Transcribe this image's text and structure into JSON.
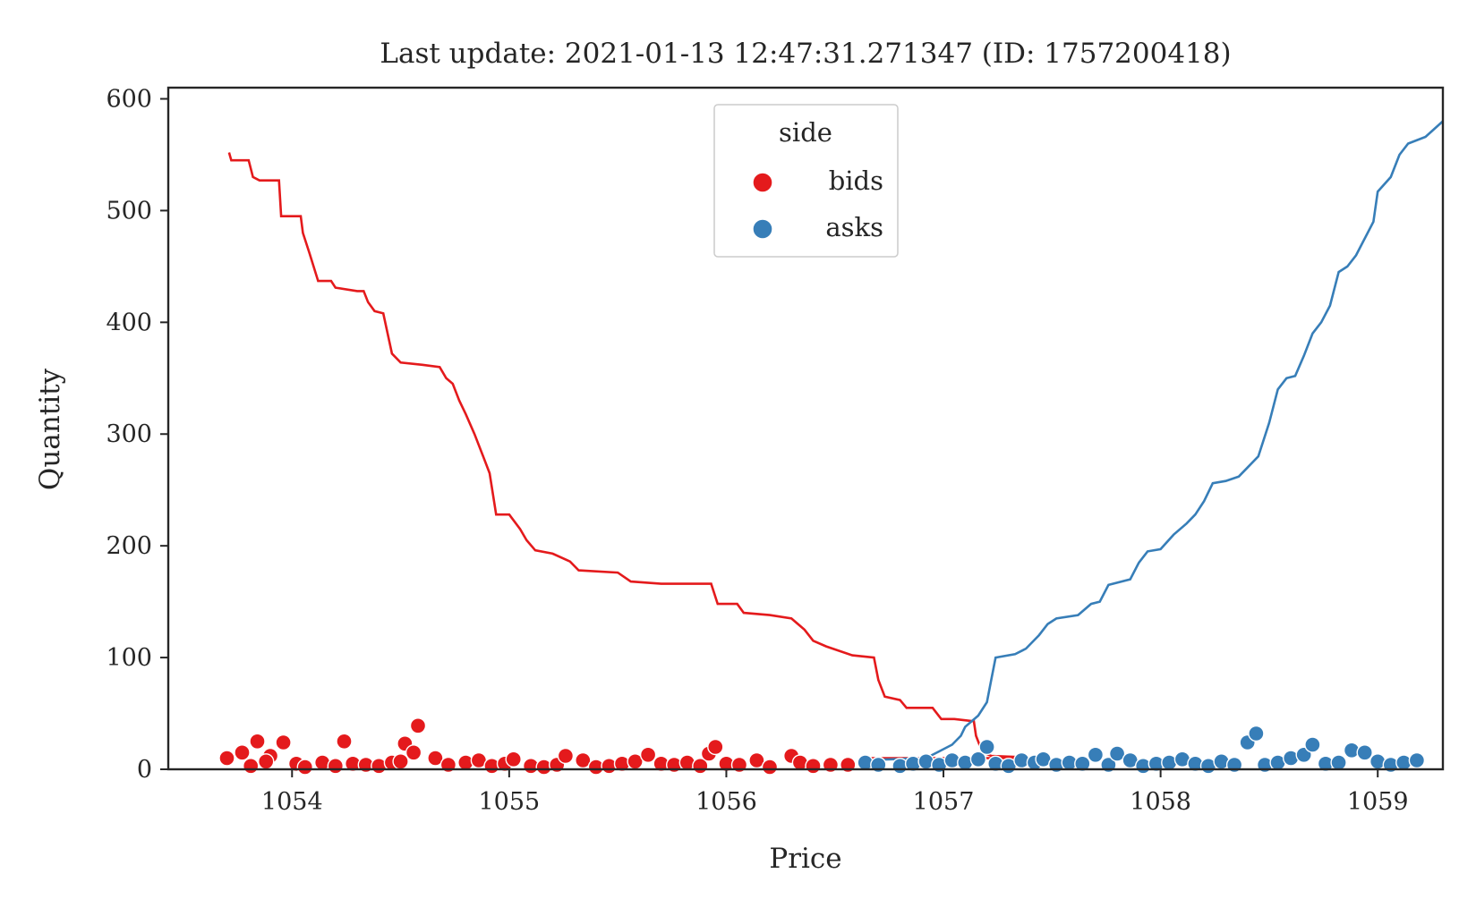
{
  "chart_data": {
    "type": "scatter",
    "title": "Last update: 2021-01-13 12:47:31.271347 (ID: 1757200418)",
    "xlabel": "Price",
    "ylabel": "Quantity",
    "xlim": [
      1053.43,
      1059.3
    ],
    "ylim": [
      0,
      610
    ],
    "x_ticks": [
      1054,
      1055,
      1056,
      1057,
      1058,
      1059
    ],
    "y_ticks": [
      0,
      100,
      200,
      300,
      400,
      500,
      600
    ],
    "grid": false,
    "legend": {
      "title": "side",
      "placement": "top-center"
    },
    "series": [
      {
        "name": "bids",
        "color": "#e41a1c",
        "cumulative_line": [
          [
            1053.71,
            552
          ],
          [
            1053.72,
            545
          ],
          [
            1053.8,
            545
          ],
          [
            1053.82,
            530
          ],
          [
            1053.85,
            527
          ],
          [
            1053.94,
            527
          ],
          [
            1053.95,
            495
          ],
          [
            1054.0,
            495
          ],
          [
            1054.04,
            495
          ],
          [
            1054.05,
            480
          ],
          [
            1054.08,
            462
          ],
          [
            1054.12,
            437
          ],
          [
            1054.18,
            437
          ],
          [
            1054.2,
            431
          ],
          [
            1054.3,
            428
          ],
          [
            1054.33,
            428
          ],
          [
            1054.35,
            418
          ],
          [
            1054.38,
            410
          ],
          [
            1054.42,
            408
          ],
          [
            1054.46,
            372
          ],
          [
            1054.5,
            364
          ],
          [
            1054.6,
            362
          ],
          [
            1054.68,
            360
          ],
          [
            1054.71,
            350
          ],
          [
            1054.74,
            345
          ],
          [
            1054.77,
            330
          ],
          [
            1054.8,
            318
          ],
          [
            1054.84,
            300
          ],
          [
            1054.88,
            280
          ],
          [
            1054.91,
            265
          ],
          [
            1054.94,
            228
          ],
          [
            1055.0,
            228
          ],
          [
            1055.05,
            215
          ],
          [
            1055.08,
            205
          ],
          [
            1055.12,
            196
          ],
          [
            1055.2,
            193
          ],
          [
            1055.28,
            186
          ],
          [
            1055.32,
            178
          ],
          [
            1055.5,
            176
          ],
          [
            1055.56,
            168
          ],
          [
            1055.7,
            166
          ],
          [
            1055.93,
            166
          ],
          [
            1055.96,
            148
          ],
          [
            1056.05,
            148
          ],
          [
            1056.08,
            140
          ],
          [
            1056.2,
            138
          ],
          [
            1056.3,
            135
          ],
          [
            1056.36,
            125
          ],
          [
            1056.4,
            115
          ],
          [
            1056.46,
            110
          ],
          [
            1056.58,
            102
          ],
          [
            1056.68,
            100
          ],
          [
            1056.7,
            80
          ],
          [
            1056.73,
            65
          ],
          [
            1056.8,
            62
          ],
          [
            1056.83,
            55
          ],
          [
            1056.95,
            55
          ],
          [
            1056.99,
            45
          ],
          [
            1057.05,
            45
          ],
          [
            1057.14,
            43
          ],
          [
            1057.15,
            30
          ],
          [
            1057.18,
            15
          ],
          [
            1057.22,
            12
          ],
          [
            1057.35,
            11
          ],
          [
            1057.42,
            10
          ],
          [
            1056.62,
            10
          ]
        ],
        "points": [
          [
            1053.7,
            10
          ],
          [
            1053.77,
            15
          ],
          [
            1053.84,
            25
          ],
          [
            1053.9,
            12
          ],
          [
            1053.96,
            24
          ],
          [
            1053.81,
            3
          ],
          [
            1053.88,
            7
          ],
          [
            1054.02,
            5
          ],
          [
            1054.06,
            2
          ],
          [
            1054.14,
            6
          ],
          [
            1054.2,
            3
          ],
          [
            1054.24,
            25
          ],
          [
            1054.28,
            5
          ],
          [
            1054.34,
            4
          ],
          [
            1054.4,
            3
          ],
          [
            1054.46,
            6
          ],
          [
            1054.52,
            23
          ],
          [
            1054.56,
            15
          ],
          [
            1054.58,
            39
          ],
          [
            1054.5,
            7
          ],
          [
            1054.66,
            10
          ],
          [
            1054.72,
            4
          ],
          [
            1054.8,
            6
          ],
          [
            1054.86,
            8
          ],
          [
            1054.92,
            3
          ],
          [
            1054.98,
            5
          ],
          [
            1055.02,
            9
          ],
          [
            1055.1,
            3
          ],
          [
            1055.16,
            2
          ],
          [
            1055.22,
            4
          ],
          [
            1055.26,
            12
          ],
          [
            1055.34,
            8
          ],
          [
            1055.4,
            2
          ],
          [
            1055.46,
            3
          ],
          [
            1055.52,
            5
          ],
          [
            1055.58,
            7
          ],
          [
            1055.64,
            13
          ],
          [
            1055.7,
            5
          ],
          [
            1055.76,
            4
          ],
          [
            1055.82,
            6
          ],
          [
            1055.88,
            3
          ],
          [
            1055.92,
            14
          ],
          [
            1055.95,
            20
          ],
          [
            1056.0,
            5
          ],
          [
            1056.06,
            4
          ],
          [
            1056.14,
            8
          ],
          [
            1056.2,
            2
          ],
          [
            1056.3,
            12
          ],
          [
            1056.34,
            6
          ],
          [
            1056.4,
            3
          ],
          [
            1056.48,
            4
          ],
          [
            1056.56,
            4
          ]
        ]
      },
      {
        "name": "asks",
        "color": "#377eb8",
        "cumulative_line": [
          [
            1056.62,
            8
          ],
          [
            1056.92,
            10
          ],
          [
            1056.98,
            16
          ],
          [
            1057.04,
            22
          ],
          [
            1057.08,
            30
          ],
          [
            1057.1,
            38
          ],
          [
            1057.16,
            48
          ],
          [
            1057.2,
            60
          ],
          [
            1057.22,
            80
          ],
          [
            1057.24,
            100
          ],
          [
            1057.33,
            103
          ],
          [
            1057.38,
            108
          ],
          [
            1057.44,
            120
          ],
          [
            1057.48,
            130
          ],
          [
            1057.52,
            135
          ],
          [
            1057.62,
            138
          ],
          [
            1057.68,
            148
          ],
          [
            1057.72,
            150
          ],
          [
            1057.76,
            165
          ],
          [
            1057.86,
            170
          ],
          [
            1057.9,
            185
          ],
          [
            1057.94,
            195
          ],
          [
            1058.0,
            197
          ],
          [
            1058.06,
            210
          ],
          [
            1058.12,
            220
          ],
          [
            1058.16,
            228
          ],
          [
            1058.2,
            240
          ],
          [
            1058.24,
            256
          ],
          [
            1058.3,
            258
          ],
          [
            1058.36,
            262
          ],
          [
            1058.4,
            270
          ],
          [
            1058.45,
            280
          ],
          [
            1058.5,
            310
          ],
          [
            1058.54,
            340
          ],
          [
            1058.58,
            350
          ],
          [
            1058.62,
            352
          ],
          [
            1058.66,
            370
          ],
          [
            1058.7,
            390
          ],
          [
            1058.74,
            400
          ],
          [
            1058.78,
            415
          ],
          [
            1058.82,
            445
          ],
          [
            1058.86,
            450
          ],
          [
            1058.9,
            460
          ],
          [
            1058.94,
            475
          ],
          [
            1058.98,
            490
          ],
          [
            1059.0,
            517
          ],
          [
            1059.06,
            530
          ],
          [
            1059.1,
            550
          ],
          [
            1059.14,
            560
          ],
          [
            1059.22,
            566
          ],
          [
            1059.3,
            580
          ]
        ],
        "points": [
          [
            1056.64,
            6
          ],
          [
            1056.7,
            4
          ],
          [
            1056.8,
            3
          ],
          [
            1056.86,
            5
          ],
          [
            1056.92,
            7
          ],
          [
            1056.98,
            4
          ],
          [
            1057.04,
            8
          ],
          [
            1057.1,
            6
          ],
          [
            1057.16,
            9
          ],
          [
            1057.2,
            20
          ],
          [
            1057.24,
            5
          ],
          [
            1057.3,
            3
          ],
          [
            1057.36,
            8
          ],
          [
            1057.42,
            6
          ],
          [
            1057.46,
            9
          ],
          [
            1057.52,
            4
          ],
          [
            1057.58,
            6
          ],
          [
            1057.64,
            5
          ],
          [
            1057.7,
            13
          ],
          [
            1057.76,
            4
          ],
          [
            1057.8,
            14
          ],
          [
            1057.86,
            8
          ],
          [
            1057.92,
            3
          ],
          [
            1057.98,
            5
          ],
          [
            1058.04,
            6
          ],
          [
            1058.1,
            9
          ],
          [
            1058.16,
            5
          ],
          [
            1058.22,
            3
          ],
          [
            1058.28,
            7
          ],
          [
            1058.34,
            4
          ],
          [
            1058.4,
            24
          ],
          [
            1058.44,
            32
          ],
          [
            1058.48,
            4
          ],
          [
            1058.54,
            6
          ],
          [
            1058.6,
            10
          ],
          [
            1058.66,
            13
          ],
          [
            1058.7,
            22
          ],
          [
            1058.76,
            5
          ],
          [
            1058.82,
            6
          ],
          [
            1058.88,
            17
          ],
          [
            1058.94,
            15
          ],
          [
            1059.0,
            7
          ],
          [
            1059.06,
            4
          ],
          [
            1059.12,
            6
          ],
          [
            1059.18,
            8
          ]
        ]
      }
    ]
  }
}
